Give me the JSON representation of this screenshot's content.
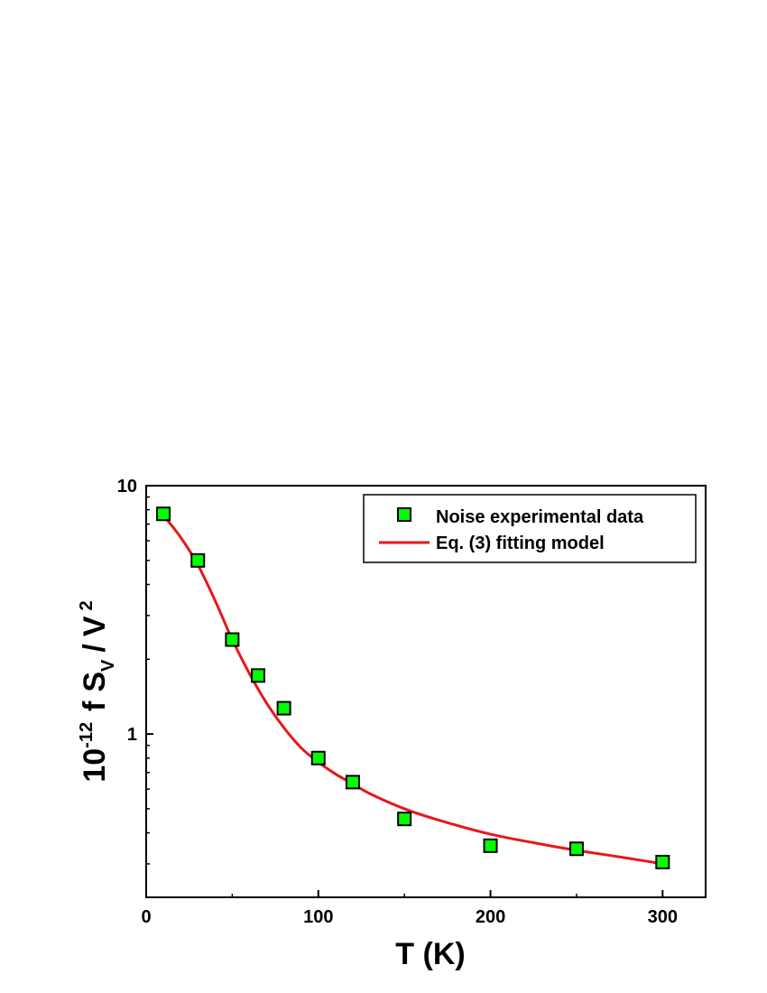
{
  "chart_data": {
    "type": "scatter",
    "xlabel": "T (K)",
    "ylabel": {
      "prefix": "10",
      "prefix_exponent": "-12",
      "f": "f",
      "S": "S",
      "S_subscript": "V",
      "slash": "/",
      "V": "V",
      "V_exponent": "2"
    },
    "xlim": [
      0,
      325
    ],
    "ylim": [
      0.22,
      10
    ],
    "yscale": "log",
    "x_ticks": [
      "0",
      "100",
      "200",
      "300"
    ],
    "y_ticks": [
      "1",
      "10"
    ],
    "legend_position": "top-right",
    "series": [
      {
        "name": "Noise experimental data",
        "kind": "markers",
        "marker": "square",
        "color": "#00ff00",
        "x": [
          10,
          30,
          50,
          65,
          80,
          100,
          120,
          150,
          200,
          250,
          300
        ],
        "y": [
          7.7,
          5.0,
          2.4,
          1.72,
          1.27,
          0.8,
          0.64,
          0.455,
          0.355,
          0.345,
          0.305
        ]
      },
      {
        "name": "Eq. (3) fitting model",
        "kind": "line",
        "color": "#e8161b",
        "x": [
          10,
          20,
          30,
          40,
          50,
          60,
          70,
          80,
          90,
          100,
          110,
          120,
          130,
          150,
          170,
          200,
          225,
          250,
          275,
          300
        ],
        "y": [
          7.6,
          6.2,
          4.8,
          3.45,
          2.4,
          1.75,
          1.33,
          1.06,
          0.88,
          0.77,
          0.69,
          0.63,
          0.575,
          0.5,
          0.45,
          0.395,
          0.365,
          0.34,
          0.32,
          0.3
        ]
      }
    ]
  }
}
